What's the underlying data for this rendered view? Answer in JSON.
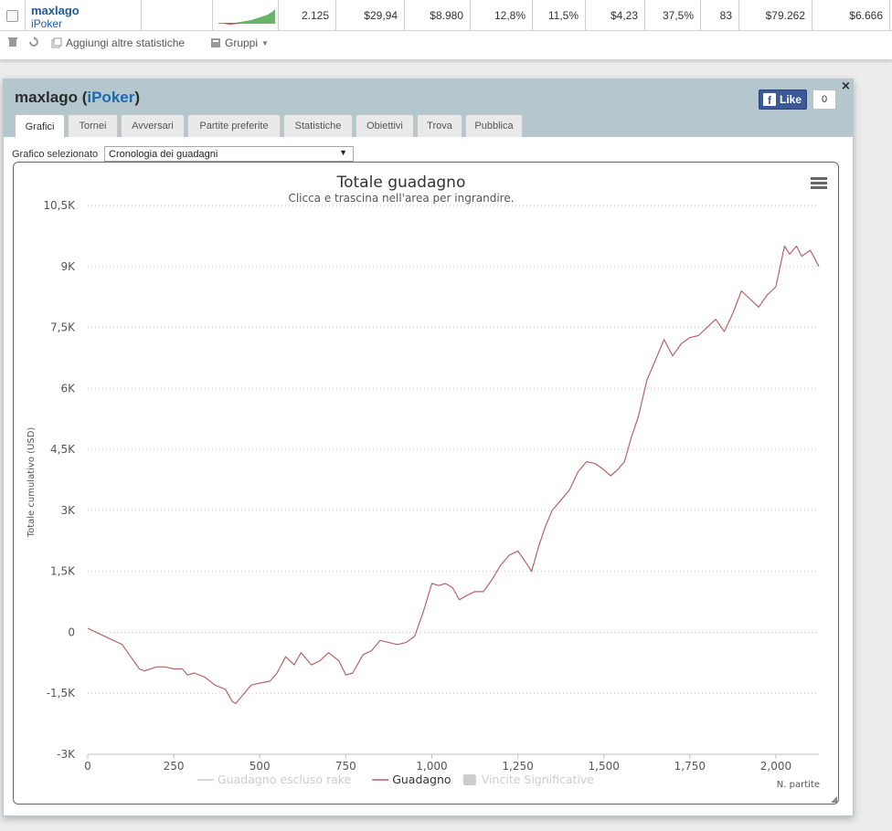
{
  "stats_row": {
    "player_name": "maxlago",
    "player_site": "iPoker",
    "values": [
      "2.125",
      "$29,94",
      "$8.980",
      "12,8%",
      "11,5%",
      "$4,23",
      "37,5%",
      "83",
      "$79.262",
      "$6.666"
    ]
  },
  "toolbar": {
    "add_stats_label": "Aggiungi altre statistiche",
    "groups_label": "Gruppi"
  },
  "dialog": {
    "player_name": "maxlago",
    "site_name": "iPoker",
    "like_label": "Like",
    "like_count": "0",
    "close_label": "×",
    "tabs": [
      {
        "label": "Grafici",
        "active": true
      },
      {
        "label": "Tornei",
        "active": false
      },
      {
        "label": "Avversari",
        "active": false
      },
      {
        "label": "Partite preferite",
        "active": false
      },
      {
        "label": "Statistiche",
        "active": false
      },
      {
        "label": "Obiettivi",
        "active": false
      },
      {
        "label": "Trova",
        "active": false
      },
      {
        "label": "Pubblica",
        "active": false
      }
    ],
    "graph_select_label": "Grafico selezionato",
    "graph_select_value": "Cronologia dei guadagni"
  },
  "chart_data": {
    "type": "line",
    "title": "Totale guadagno",
    "subtitle": "Clicca e trascina nell'area per ingrandire.",
    "ylabel": "Totale cumulativo (USD)",
    "xlabel": "N. partite",
    "xlim": [
      0,
      2125
    ],
    "ylim": [
      -3000,
      10500
    ],
    "x_ticks": [
      "0",
      "250",
      "500",
      "750",
      "1,000",
      "1,250",
      "1,500",
      "1,750",
      "2,000"
    ],
    "x_tick_values": [
      0,
      250,
      500,
      750,
      1000,
      1250,
      1500,
      1750,
      2000
    ],
    "y_ticks": [
      "10,5K",
      "9K",
      "7,5K",
      "6K",
      "4,5K",
      "3K",
      "1,5K",
      "0",
      "-1,5K",
      "-3K"
    ],
    "y_tick_values": [
      10500,
      9000,
      7500,
      6000,
      4500,
      3000,
      1500,
      0,
      -1500,
      -3000
    ],
    "grid": true,
    "legend": [
      {
        "label": "Guadagno escluso rake",
        "color": "#cccccc",
        "active": false
      },
      {
        "label": "Guadagno",
        "color": "#b46464",
        "active": true
      },
      {
        "label": "Vincite Significative",
        "color": "#cccccc",
        "active": false
      }
    ],
    "series": [
      {
        "name": "Guadagno",
        "color": "#b46464",
        "x": [
          0,
          25,
          50,
          75,
          100,
          125,
          150,
          165,
          200,
          225,
          250,
          275,
          290,
          310,
          340,
          370,
          400,
          420,
          430,
          450,
          475,
          500,
          530,
          550,
          575,
          600,
          620,
          650,
          675,
          700,
          730,
          750,
          770,
          800,
          825,
          850,
          875,
          900,
          925,
          950,
          975,
          1000,
          1020,
          1040,
          1060,
          1080,
          1100,
          1125,
          1150,
          1175,
          1200,
          1225,
          1250,
          1275,
          1290,
          1310,
          1330,
          1350,
          1375,
          1400,
          1425,
          1450,
          1475,
          1500,
          1520,
          1540,
          1560,
          1580,
          1600,
          1625,
          1650,
          1675,
          1700,
          1725,
          1750,
          1775,
          1800,
          1825,
          1850,
          1875,
          1900,
          1925,
          1950,
          1975,
          2000,
          2025,
          2040,
          2060,
          2075,
          2100,
          2125
        ],
        "y": [
          100,
          0,
          -100,
          -200,
          -300,
          -600,
          -900,
          -950,
          -850,
          -850,
          -900,
          -900,
          -1050,
          -1000,
          -1100,
          -1300,
          -1400,
          -1700,
          -1750,
          -1550,
          -1300,
          -1250,
          -1200,
          -1000,
          -600,
          -800,
          -500,
          -800,
          -700,
          -500,
          -700,
          -1050,
          -1000,
          -550,
          -450,
          -200,
          -250,
          -300,
          -250,
          -100,
          500,
          1200,
          1150,
          1200,
          1100,
          800,
          900,
          1000,
          1000,
          1300,
          1650,
          1900,
          2000,
          1700,
          1500,
          2100,
          2600,
          3000,
          3250,
          3500,
          3950,
          4200,
          4150,
          4000,
          3850,
          4000,
          4200,
          4800,
          5300,
          6200,
          6700,
          7200,
          6800,
          7100,
          7250,
          7300,
          7500,
          7700,
          7400,
          7850,
          8400,
          8200,
          8000,
          8300,
          8500,
          9500,
          9300,
          9500,
          9250,
          9400,
          9000
        ]
      }
    ]
  }
}
